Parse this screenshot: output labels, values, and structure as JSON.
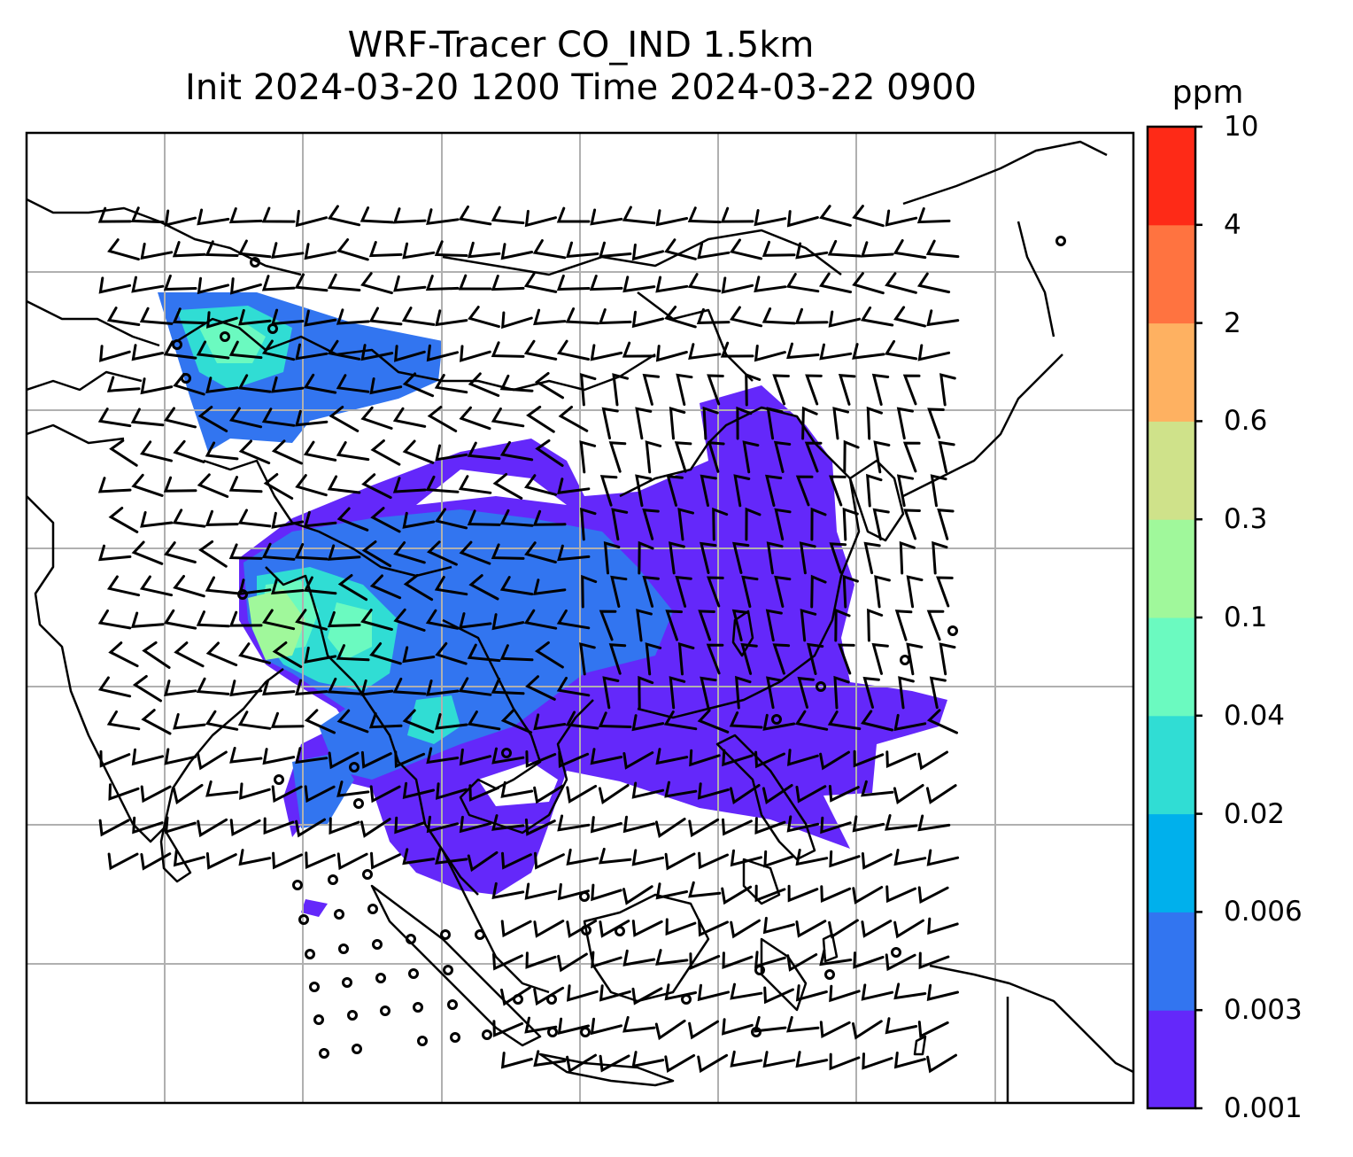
{
  "title": {
    "line1": "WRF-Tracer CO_IND 1.5km",
    "line2": "Init 2024-03-20 1200 Time 2024-03-22 0900"
  },
  "colorbar": {
    "unit": "ppm",
    "levels": [
      "0.001",
      "0.003",
      "0.006",
      "0.02",
      "0.04",
      "0.1",
      "0.3",
      "0.6",
      "2",
      "4",
      "10"
    ],
    "colors": [
      "#6428fa",
      "#3275f0",
      "#00b0ec",
      "#30ddd4",
      "#6bfac0",
      "#a0f89b",
      "#cfe28a",
      "#feb161",
      "#ff7340",
      "#fe2a17"
    ]
  },
  "map": {
    "gridlines": true,
    "field_colors": {
      "low": "#6428fa",
      "mid": "#3275f0",
      "cyan": "#30ddd4",
      "green": "#6bfac0",
      "lime": "#a0f89b"
    }
  }
}
